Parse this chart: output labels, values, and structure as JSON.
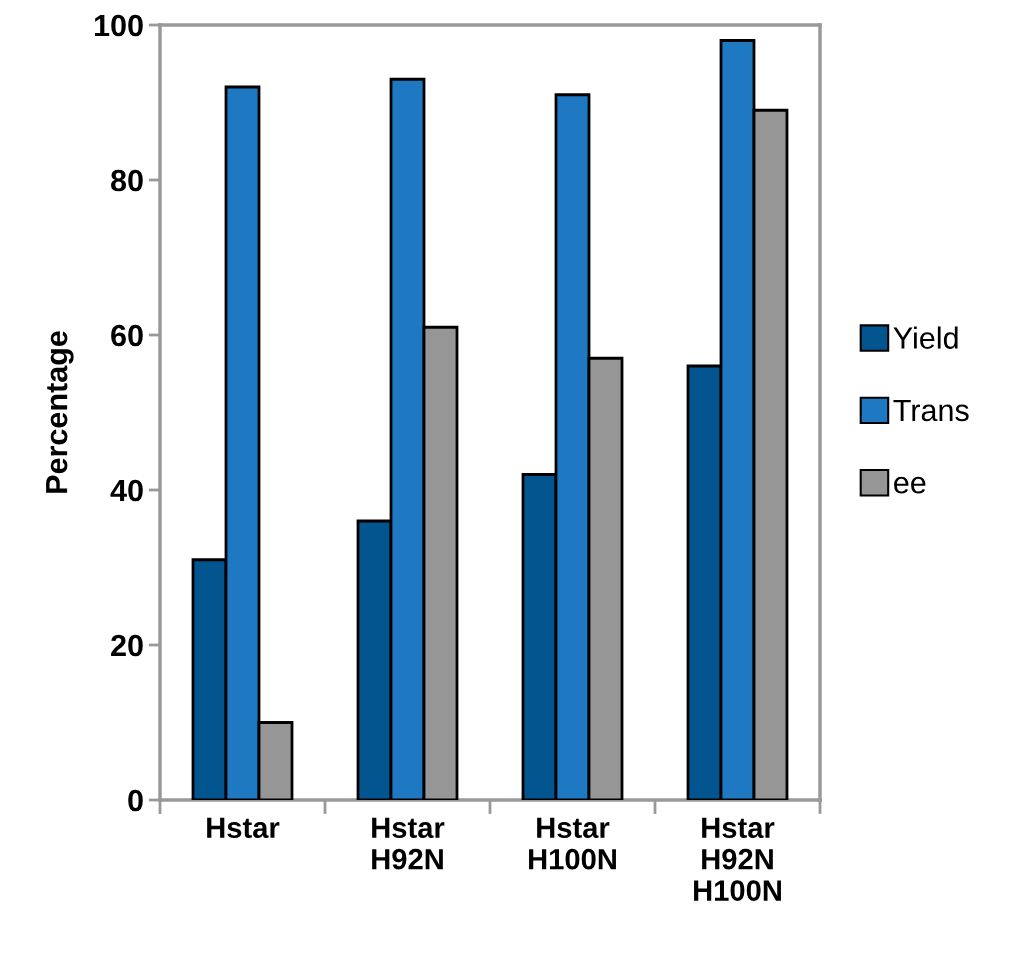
{
  "chart_data": {
    "type": "bar",
    "ylabel": "Percentage",
    "categories": [
      "Hstar",
      "Hstar\nH92N",
      "Hstar\nH100N",
      "Hstar\nH92N\nH100N"
    ],
    "series": [
      {
        "name": "Yield",
        "color": "#03558f",
        "values": [
          31,
          36,
          42,
          56
        ]
      },
      {
        "name": "Trans",
        "color": "#1f78c2",
        "values": [
          92,
          93,
          91,
          98
        ]
      },
      {
        "name": "ee",
        "color": "#969696",
        "values": [
          10,
          61,
          57,
          89
        ]
      }
    ],
    "ylim": [
      0,
      100
    ],
    "yticks": [
      0,
      20,
      40,
      60,
      80,
      100
    ],
    "grid": false,
    "legend": "right"
  }
}
